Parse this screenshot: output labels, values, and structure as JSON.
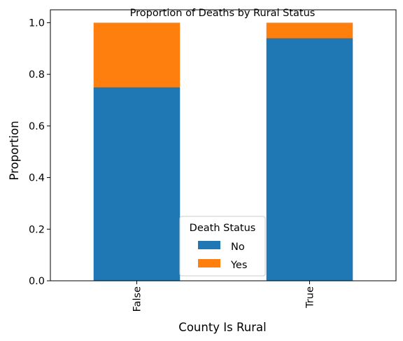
{
  "chart_data": {
    "type": "bar",
    "stacked": true,
    "title": "Proportion of Deaths by Rural Status",
    "xlabel": "County Is Rural",
    "ylabel": "Proportion",
    "categories": [
      "False",
      "True"
    ],
    "ylim": [
      0,
      1.05
    ],
    "yticks": [
      "0.0",
      "0.2",
      "0.4",
      "0.6",
      "0.8",
      "1.0"
    ],
    "grid": false,
    "legend": {
      "title": "Death Status",
      "placement": "lower-center"
    },
    "series": [
      {
        "name": "No",
        "color": "#1f77b4",
        "values": [
          0.75,
          0.94
        ]
      },
      {
        "name": "Yes",
        "color": "#ff7f0e",
        "values": [
          0.25,
          0.06
        ]
      }
    ]
  }
}
